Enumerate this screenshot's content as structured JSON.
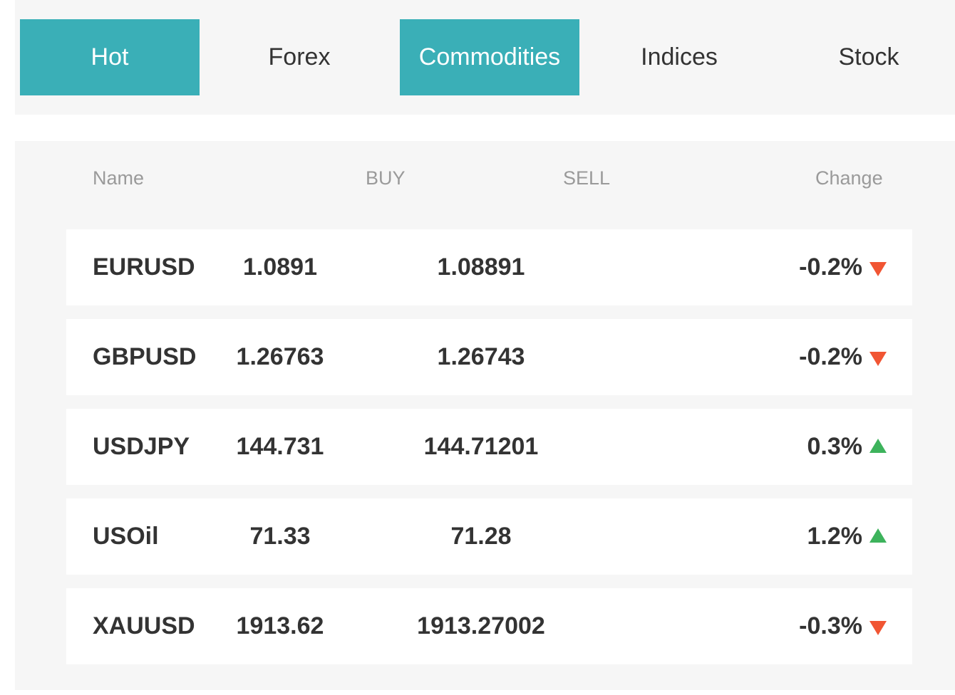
{
  "tabs": [
    {
      "label": "Hot",
      "active": true
    },
    {
      "label": "Forex",
      "active": false
    },
    {
      "label": "Commodities",
      "active": true
    },
    {
      "label": "Indices",
      "active": false
    },
    {
      "label": "Stock",
      "active": false
    }
  ],
  "table": {
    "headers": {
      "name": "Name",
      "buy": "BUY",
      "sell": "SELL",
      "change": "Change"
    },
    "rows": [
      {
        "name": "EURUSD",
        "buy": "1.0891",
        "sell": "1.08891",
        "change": "-0.2%",
        "direction": "down"
      },
      {
        "name": "GBPUSD",
        "buy": "1.26763",
        "sell": "1.26743",
        "change": "-0.2%",
        "direction": "down"
      },
      {
        "name": "USDJPY",
        "buy": "144.731",
        "sell": "144.71201",
        "change": "0.3%",
        "direction": "up"
      },
      {
        "name": "USOil",
        "buy": "71.33",
        "sell": "71.28",
        "change": "1.2%",
        "direction": "up"
      },
      {
        "name": "XAUUSD",
        "buy": "1913.62",
        "sell": "1913.27002",
        "change": "-0.3%",
        "direction": "down"
      }
    ]
  },
  "colors": {
    "accent": "#3aafb7",
    "down": "#f15533",
    "up": "#3db35c"
  }
}
